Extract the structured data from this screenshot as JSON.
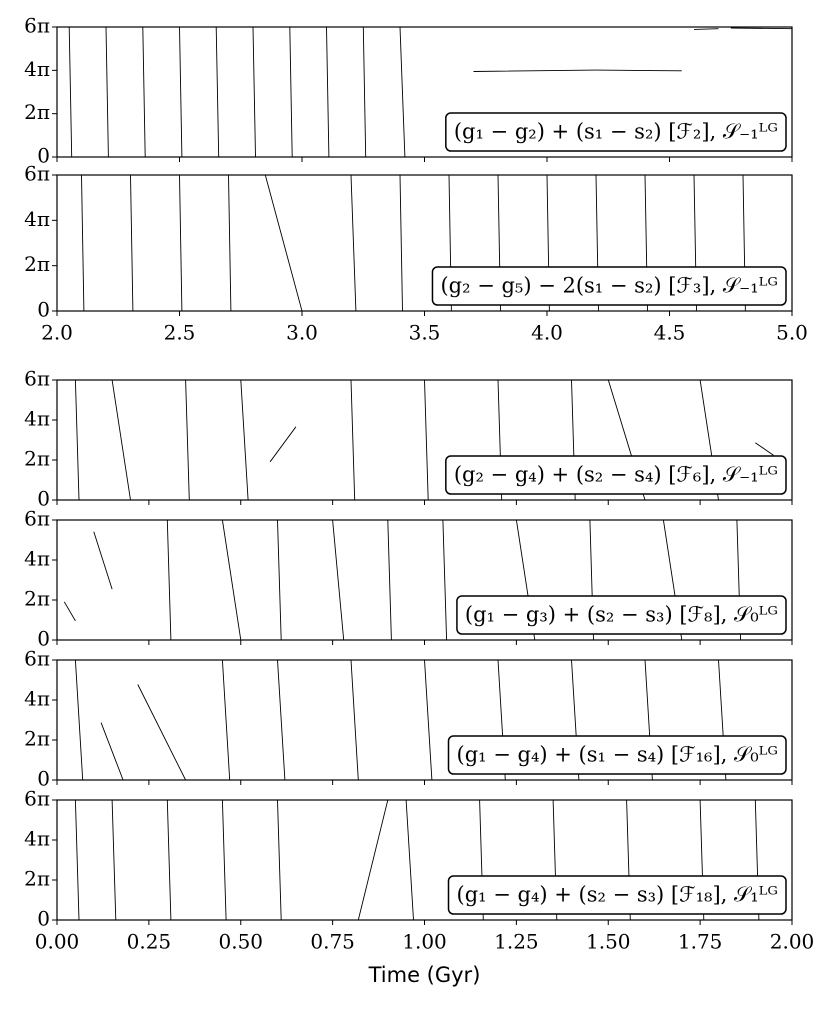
{
  "chart_data": [
    {
      "type": "line",
      "label": "(g₁ − g₂) + (s₁ − s₂) [ℱ₂], 𝒮₋₁ᴸᴳ",
      "xlim": [
        2,
        5
      ],
      "xticks": [
        {
          "value": 2,
          "label": "2.0"
        },
        {
          "value": 2.5,
          "label": "2.5"
        },
        {
          "value": 3,
          "label": "3.0"
        },
        {
          "value": 3.5,
          "label": "3.5"
        },
        {
          "value": 4,
          "label": "4.0"
        },
        {
          "value": 4.5,
          "label": "4.5"
        },
        {
          "value": 5,
          "label": "5.0"
        }
      ],
      "show_xtick_labels": false,
      "ylim": [
        0,
        18.85
      ],
      "yticks": [
        0,
        {
          "value": 6.283,
          "label": "2π"
        },
        {
          "value": 12.566,
          "label": "4π"
        },
        {
          "value": 18.85,
          "label": "6π"
        }
      ],
      "color": "#000000",
      "x": [
        2.05,
        2.06,
        null,
        2.2,
        2.21,
        null,
        2.35,
        2.36,
        null,
        2.5,
        2.51,
        null,
        2.65,
        2.66,
        null,
        2.8,
        2.81,
        null,
        2.95,
        2.96,
        null,
        3.1,
        3.11,
        null,
        3.25,
        3.26,
        null,
        3.4,
        3.42,
        null,
        3.7,
        4.2,
        4.55,
        null,
        4.6,
        4.7,
        null,
        4.75,
        5.0
      ],
      "values": [
        18.85,
        0,
        null,
        18.85,
        0,
        null,
        18.85,
        0,
        null,
        18.85,
        0,
        null,
        18.85,
        0,
        null,
        18.85,
        0,
        null,
        18.85,
        0,
        null,
        18.85,
        0,
        null,
        18.85,
        0,
        null,
        18.85,
        0,
        null,
        12.4,
        12.6,
        12.5,
        null,
        18.5,
        18.6,
        null,
        18.7,
        18.6
      ]
    },
    {
      "type": "line",
      "label": "(g₂ − g₅) − 2(s₁ − s₂) [ℱ₃], 𝒮₋₁ᴸᴳ",
      "xlim": [
        2,
        5
      ],
      "xticks": [
        {
          "value": 2,
          "label": "2.0"
        },
        {
          "value": 2.5,
          "label": "2.5"
        },
        {
          "value": 3,
          "label": "3.0"
        },
        {
          "value": 3.5,
          "label": "3.5"
        },
        {
          "value": 4,
          "label": "4.0"
        },
        {
          "value": 4.5,
          "label": "4.5"
        },
        {
          "value": 5,
          "label": "5.0"
        }
      ],
      "show_xtick_labels": true,
      "ylim": [
        0,
        18.85
      ],
      "yticks": [
        0,
        {
          "value": 6.283,
          "label": "2π"
        },
        {
          "value": 12.566,
          "label": "4π"
        },
        {
          "value": 18.85,
          "label": "6π"
        }
      ],
      "color": "#000000",
      "x": [
        2.1,
        2.11,
        null,
        2.3,
        2.31,
        null,
        2.5,
        2.51,
        null,
        2.7,
        2.71,
        null,
        2.85,
        3.0,
        null,
        3.2,
        3.22,
        null,
        3.4,
        3.41,
        null,
        3.6,
        3.61,
        null,
        3.8,
        3.81,
        null,
        4.0,
        4.01,
        null,
        4.2,
        4.21,
        null,
        4.4,
        4.41,
        null,
        4.6,
        4.61,
        null,
        4.8,
        4.81
      ],
      "values": [
        18.85,
        0,
        null,
        18.85,
        0,
        null,
        18.85,
        0,
        null,
        18.85,
        0,
        null,
        18.85,
        0,
        null,
        18.85,
        0,
        null,
        18.85,
        0,
        null,
        18.85,
        0,
        null,
        18.85,
        0,
        null,
        18.85,
        0,
        null,
        18.85,
        0,
        null,
        18.85,
        0,
        null,
        18.85,
        0,
        null,
        18.85,
        0
      ]
    },
    {
      "type": "line",
      "label": "(g₂ − g₄) + (s₂ − s₄) [ℱ₆], 𝒮₋₁ᴸᴳ",
      "xlim": [
        0,
        2
      ],
      "xticks": [
        {
          "value": 0,
          "label": "0.00"
        },
        {
          "value": 0.25,
          "label": "0.25"
        },
        {
          "value": 0.5,
          "label": "0.50"
        },
        {
          "value": 0.75,
          "label": "0.75"
        },
        {
          "value": 1,
          "label": "1.00"
        },
        {
          "value": 1.25,
          "label": "1.25"
        },
        {
          "value": 1.5,
          "label": "1.50"
        },
        {
          "value": 1.75,
          "label": "1.75"
        },
        {
          "value": 2,
          "label": "2.00"
        }
      ],
      "show_xtick_labels": false,
      "ylim": [
        0,
        18.85
      ],
      "yticks": [
        0,
        {
          "value": 6.283,
          "label": "2π"
        },
        {
          "value": 12.566,
          "label": "4π"
        },
        {
          "value": 18.85,
          "label": "6π"
        }
      ],
      "color": "#000000",
      "x": [
        0.05,
        0.06,
        null,
        0.15,
        0.2,
        null,
        0.35,
        0.36,
        null,
        0.5,
        0.52,
        null,
        0.58,
        0.65,
        null,
        0.8,
        0.81,
        null,
        1.0,
        1.01,
        null,
        1.2,
        1.21,
        null,
        1.4,
        1.41,
        null,
        1.5,
        1.6,
        null,
        1.75,
        1.8,
        null,
        1.9,
        1.95
      ],
      "values": [
        18.85,
        0,
        null,
        18.85,
        0,
        null,
        18.85,
        0,
        null,
        18.85,
        0,
        null,
        6,
        11.5,
        null,
        18.85,
        0,
        null,
        18.85,
        0,
        null,
        18.85,
        0,
        null,
        18.85,
        0,
        null,
        18.85,
        0,
        null,
        18.85,
        0,
        null,
        9,
        7
      ]
    },
    {
      "type": "line",
      "label": "(g₁ − g₃) + (s₂ − s₃) [ℱ₈], 𝒮₀ᴸᴳ",
      "xlim": [
        0,
        2
      ],
      "xticks": [
        {
          "value": 0,
          "label": "0.00"
        },
        {
          "value": 0.25,
          "label": "0.25"
        },
        {
          "value": 0.5,
          "label": "0.50"
        },
        {
          "value": 0.75,
          "label": "0.75"
        },
        {
          "value": 1,
          "label": "1.00"
        },
        {
          "value": 1.25,
          "label": "1.25"
        },
        {
          "value": 1.5,
          "label": "1.50"
        },
        {
          "value": 1.75,
          "label": "1.75"
        },
        {
          "value": 2,
          "label": "2.00"
        }
      ],
      "show_xtick_labels": false,
      "ylim": [
        0,
        18.85
      ],
      "yticks": [
        0,
        {
          "value": 6.283,
          "label": "2π"
        },
        {
          "value": 12.566,
          "label": "4π"
        },
        {
          "value": 18.85,
          "label": "6π"
        }
      ],
      "color": "#000000",
      "x": [
        0.02,
        0.05,
        null,
        0.1,
        0.15,
        null,
        0.3,
        0.31,
        null,
        0.45,
        0.5,
        null,
        0.6,
        0.61,
        null,
        0.75,
        0.78,
        null,
        0.9,
        0.91,
        null,
        1.05,
        1.06,
        null,
        1.25,
        1.3,
        null,
        1.45,
        1.46,
        null,
        1.65,
        1.7,
        null,
        1.85,
        1.86
      ],
      "values": [
        6,
        3,
        null,
        17,
        8,
        null,
        18.85,
        0,
        null,
        18.85,
        0,
        null,
        18.85,
        0,
        null,
        18.85,
        0,
        null,
        18.85,
        0,
        null,
        18.85,
        0,
        null,
        18.85,
        0,
        null,
        18.85,
        0,
        null,
        18.85,
        0,
        null,
        18.85,
        0
      ]
    },
    {
      "type": "line",
      "label": "(g₁ − g₄) + (s₁ − s₄) [ℱ₁₆], 𝒮₀ᴸᴳ",
      "xlim": [
        0,
        2
      ],
      "xticks": [
        {
          "value": 0,
          "label": "0.00"
        },
        {
          "value": 0.25,
          "label": "0.25"
        },
        {
          "value": 0.5,
          "label": "0.50"
        },
        {
          "value": 0.75,
          "label": "0.75"
        },
        {
          "value": 1,
          "label": "1.00"
        },
        {
          "value": 1.25,
          "label": "1.25"
        },
        {
          "value": 1.5,
          "label": "1.50"
        },
        {
          "value": 1.75,
          "label": "1.75"
        },
        {
          "value": 2,
          "label": "2.00"
        }
      ],
      "show_xtick_labels": false,
      "ylim": [
        0,
        18.85
      ],
      "yticks": [
        0,
        {
          "value": 6.283,
          "label": "2π"
        },
        {
          "value": 12.566,
          "label": "4π"
        },
        {
          "value": 18.85,
          "label": "6π"
        }
      ],
      "color": "#000000",
      "x": [
        0.05,
        0.07,
        null,
        0.12,
        0.18,
        null,
        0.22,
        0.35,
        null,
        0.45,
        0.47,
        null,
        0.6,
        0.62,
        null,
        0.8,
        0.82,
        null,
        1.0,
        1.02,
        null,
        1.2,
        1.22,
        null,
        1.4,
        1.42,
        null,
        1.6,
        1.62,
        null,
        1.8,
        1.82
      ],
      "values": [
        18.85,
        0,
        null,
        9,
        0,
        null,
        15,
        0,
        null,
        18.85,
        0,
        null,
        18.85,
        0,
        null,
        18.85,
        0,
        null,
        18.85,
        0,
        null,
        18.85,
        0,
        null,
        18.85,
        0,
        null,
        18.85,
        0,
        null,
        18.85,
        0
      ]
    },
    {
      "type": "line",
      "label": "(g₁ − g₄) + (s₂ − s₃) [ℱ₁₈], 𝒮₁ᴸᴳ",
      "xlim": [
        0,
        2
      ],
      "xticks": [
        {
          "value": 0,
          "label": "0.00"
        },
        {
          "value": 0.25,
          "label": "0.25"
        },
        {
          "value": 0.5,
          "label": "0.50"
        },
        {
          "value": 0.75,
          "label": "0.75"
        },
        {
          "value": 1,
          "label": "1.00"
        },
        {
          "value": 1.25,
          "label": "1.25"
        },
        {
          "value": 1.5,
          "label": "1.50"
        },
        {
          "value": 1.75,
          "label": "1.75"
        },
        {
          "value": 2,
          "label": "2.00"
        }
      ],
      "show_xtick_labels": true,
      "xlabel": "Time (Gyr)",
      "ylim": [
        0,
        18.85
      ],
      "yticks": [
        0,
        {
          "value": 6.283,
          "label": "2π"
        },
        {
          "value": 12.566,
          "label": "4π"
        },
        {
          "value": 18.85,
          "label": "6π"
        }
      ],
      "color": "#000000",
      "x": [
        0.05,
        0.06,
        null,
        0.15,
        0.16,
        null,
        0.3,
        0.31,
        null,
        0.45,
        0.46,
        null,
        0.6,
        0.61,
        null,
        0.82,
        0.9,
        null,
        0.95,
        0.97,
        null,
        1.15,
        1.16,
        null,
        1.35,
        1.36,
        null,
        1.55,
        1.56,
        null,
        1.75,
        1.76,
        null,
        1.9,
        1.91
      ],
      "values": [
        18.85,
        0,
        null,
        18.85,
        0,
        null,
        18.85,
        0,
        null,
        18.85,
        0,
        null,
        18.85,
        0,
        null,
        0,
        18.85,
        null,
        18.85,
        0,
        null,
        18.85,
        0,
        null,
        18.85,
        0,
        null,
        18.85,
        0,
        null,
        18.85,
        0,
        null,
        18.85,
        0
      ]
    }
  ]
}
